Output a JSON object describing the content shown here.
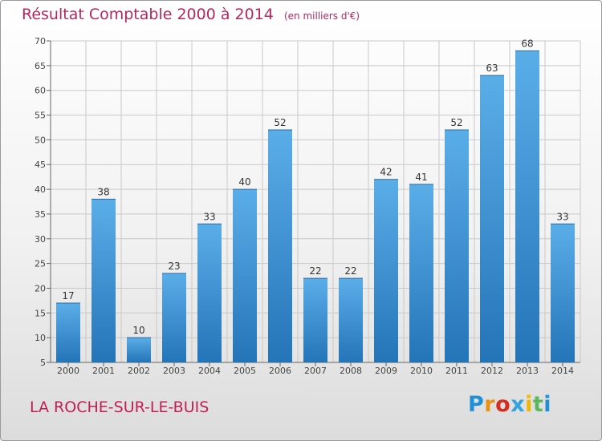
{
  "header": {
    "title": "Résultat Comptable 2000 à 2014",
    "unit": "(en milliers d'€)"
  },
  "footer": {
    "commune": "LA ROCHE-SUR-LE-BUIS",
    "logo_letters": [
      "P",
      "r",
      "o",
      "x",
      "i",
      "t",
      "i"
    ],
    "logo_colors": [
      "#1f8fd6",
      "#e8920f",
      "#d62d20",
      "#33a4e0",
      "#f2b705",
      "#5cb85c",
      "#1f8fd6"
    ]
  },
  "chart_data": {
    "type": "bar",
    "title": "Résultat Comptable 2000 à 2014",
    "subtitle": "(en milliers d'€)",
    "categories": [
      "2000",
      "2001",
      "2002",
      "2003",
      "2004",
      "2005",
      "2006",
      "2007",
      "2008",
      "2009",
      "2010",
      "2011",
      "2012",
      "2013",
      "2014"
    ],
    "values": [
      17,
      38,
      10,
      23,
      33,
      40,
      52,
      22,
      22,
      42,
      41,
      52,
      63,
      68,
      33
    ],
    "xlabel": "",
    "ylabel": "",
    "ylim": [
      5,
      70
    ],
    "yticks": [
      5,
      10,
      15,
      20,
      25,
      30,
      35,
      40,
      45,
      50,
      55,
      60,
      65,
      70
    ],
    "grid": true,
    "colors": {
      "bar_light": "#5aaee8",
      "bar_dark": "#2474b8",
      "grid": "#c9c9c9",
      "axis": "#666666"
    }
  }
}
